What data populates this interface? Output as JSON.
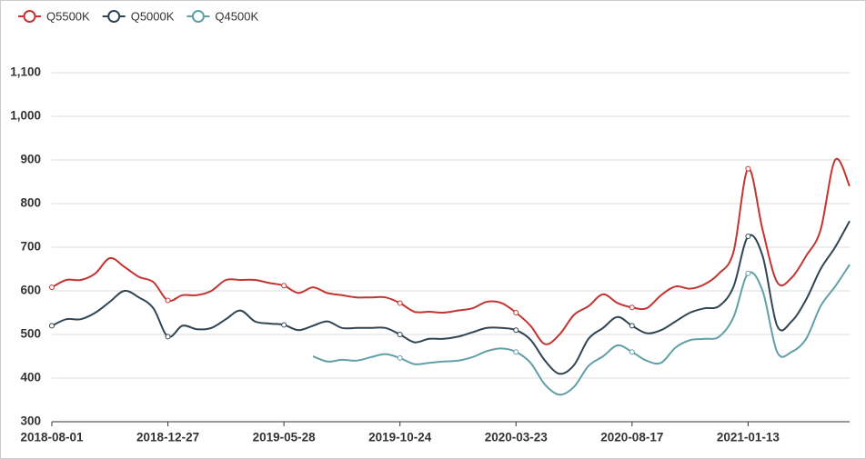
{
  "chart_data": {
    "type": "line",
    "categories": [
      "2018-08-01",
      null,
      null,
      null,
      null,
      null,
      null,
      null,
      "2018-12-27",
      null,
      null,
      null,
      null,
      null,
      null,
      null,
      "2019-05-28",
      null,
      null,
      null,
      null,
      null,
      null,
      null,
      "2019-10-24",
      null,
      null,
      null,
      null,
      null,
      null,
      null,
      "2020-03-23",
      null,
      null,
      null,
      null,
      null,
      null,
      null,
      "2020-08-17",
      null,
      null,
      null,
      null,
      null,
      null,
      null,
      "2021-01-13",
      null,
      null,
      null,
      null,
      null,
      null,
      null
    ],
    "series": [
      {
        "name": "Q5500K",
        "color": "#c23531",
        "values": [
          608,
          625,
          625,
          640,
          675,
          655,
          632,
          620,
          578,
          590,
          590,
          600,
          625,
          625,
          625,
          618,
          612,
          595,
          608,
          595,
          590,
          585,
          585,
          585,
          572,
          552,
          552,
          550,
          555,
          560,
          575,
          572,
          550,
          520,
          478,
          500,
          545,
          565,
          592,
          572,
          562,
          560,
          590,
          610,
          605,
          615,
          640,
          690,
          880,
          740,
          620,
          630,
          680,
          740,
          900,
          840
        ]
      },
      {
        "name": "Q5000K",
        "color": "#2f4554",
        "values": [
          520,
          535,
          535,
          550,
          575,
          600,
          585,
          560,
          495,
          520,
          512,
          515,
          535,
          555,
          530,
          525,
          522,
          510,
          520,
          530,
          515,
          515,
          515,
          515,
          500,
          482,
          490,
          490,
          495,
          505,
          515,
          515,
          510,
          488,
          440,
          410,
          430,
          490,
          515,
          540,
          520,
          503,
          510,
          530,
          550,
          560,
          565,
          610,
          725,
          680,
          520,
          530,
          580,
          650,
          700,
          760
        ]
      },
      {
        "name": "Q4500K",
        "color": "#61a0a8",
        "values": [
          null,
          null,
          null,
          null,
          null,
          null,
          null,
          null,
          null,
          null,
          null,
          null,
          null,
          null,
          null,
          null,
          null,
          null,
          450,
          438,
          442,
          440,
          448,
          455,
          446,
          432,
          435,
          438,
          440,
          448,
          462,
          468,
          460,
          435,
          385,
          362,
          380,
          428,
          450,
          475,
          460,
          440,
          435,
          470,
          487,
          490,
          495,
          540,
          640,
          600,
          460,
          460,
          490,
          565,
          610,
          660
        ]
      }
    ],
    "ylim": [
      300,
      1100
    ],
    "yticks": [
      300,
      400,
      500,
      600,
      700,
      800,
      900,
      {
        "value": 1000,
        "label": "1,000"
      },
      {
        "value": 1100,
        "label": "1,100"
      }
    ],
    "grid": true
  }
}
